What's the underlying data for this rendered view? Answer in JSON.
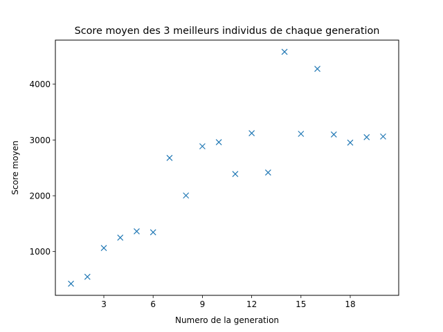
{
  "chart_data": {
    "type": "scatter",
    "title": "Score moyen des 3 meilleurs individus de chaque generation",
    "xlabel": "Numero de la generation",
    "ylabel": "Score moyen",
    "marker": "x",
    "color": "#1f77b4",
    "xlim": [
      0.05,
      20.95
    ],
    "ylim": [
      215,
      4790
    ],
    "xticks": [
      3,
      6,
      9,
      12,
      15,
      18
    ],
    "yticks": [
      1000,
      2000,
      3000,
      4000
    ],
    "grid": false,
    "legend": "none",
    "x": [
      1,
      2,
      3,
      4,
      5,
      6,
      7,
      8,
      9,
      10,
      11,
      12,
      13,
      14,
      15,
      16,
      17,
      18,
      19,
      20
    ],
    "y": [
      423,
      547,
      1063,
      1249,
      1363,
      1345,
      2679,
      2005,
      2887,
      2960,
      2390,
      3122,
      2417,
      4580,
      3110,
      4275,
      3098,
      2953,
      3050,
      3062
    ]
  }
}
